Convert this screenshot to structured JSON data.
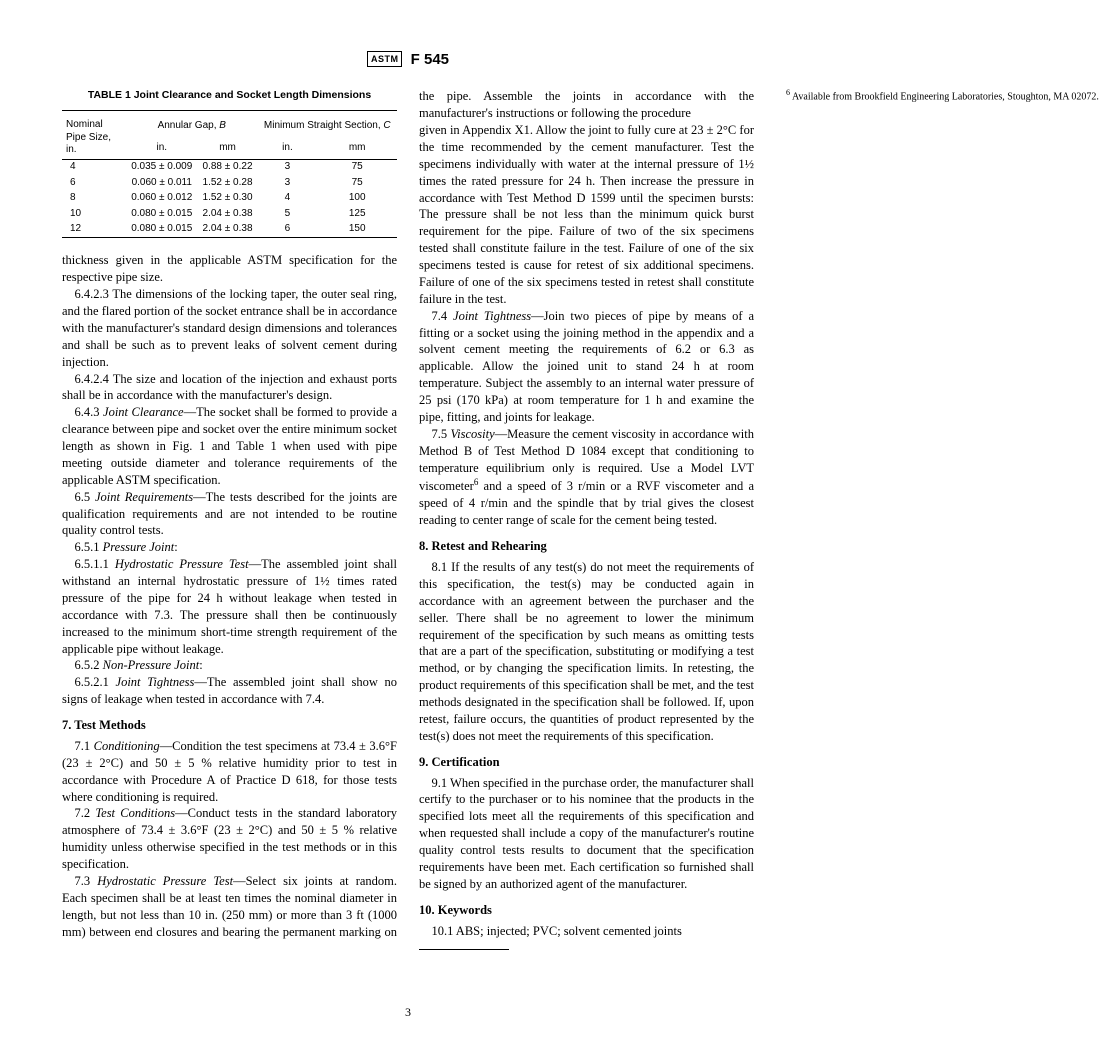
{
  "header": {
    "logo_text": "ASTM",
    "designation": "F 545"
  },
  "table1": {
    "title": "TABLE 1   Joint Clearance and Socket Length Dimensions",
    "col_group1": "Nominal Pipe Size, in.",
    "col_group2": "Annular Gap, <em class='it'>B</em>",
    "col_group3": "Minimum Straight Section, <em class='it'>C</em>",
    "sub_in": "in.",
    "sub_mm": "mm",
    "rows": [
      {
        "size": "4",
        "gap_in": "0.035 ± 0.009",
        "gap_mm": "0.88 ± 0.22",
        "c_in": "3",
        "c_mm": "75"
      },
      {
        "size": "6",
        "gap_in": "0.060 ± 0.011",
        "gap_mm": "1.52 ± 0.28",
        "c_in": "3",
        "c_mm": "75"
      },
      {
        "size": "8",
        "gap_in": "0.060 ± 0.012",
        "gap_mm": "1.52 ± 0.30",
        "c_in": "4",
        "c_mm": "100"
      },
      {
        "size": "10",
        "gap_in": "0.080 ± 0.015",
        "gap_mm": "2.04 ± 0.38",
        "c_in": "5",
        "c_mm": "125"
      },
      {
        "size": "12",
        "gap_in": "0.080 ± 0.015",
        "gap_mm": "2.04 ± 0.38",
        "c_in": "6",
        "c_mm": "150"
      }
    ]
  },
  "paras": {
    "p0": "thickness given in the applicable ASTM specification for the respective pipe size.",
    "p1": "6.4.2.3 The dimensions of the locking taper, the outer seal ring, and the flared portion of the socket entrance shall be in accordance with the manufacturer's standard design dimensions and tolerances and shall be such as to prevent leaks of solvent cement during injection.",
    "p2": "6.4.2.4 The size and location of the injection and exhaust ports shall be in accordance with the manufacturer's design.",
    "p3": "6.4.3 <em class='it'>Joint Clearance</em>—The socket shall be formed to provide a clearance between pipe and socket over the entire minimum socket length as shown in Fig. 1 and Table 1 when used with pipe meeting outside diameter and tolerance requirements of the applicable ASTM specification.",
    "p4": "6.5 <em class='it'>Joint Requirements</em>—The tests described for the joints are qualification requirements and are not intended to be routine quality control tests.",
    "p5": "6.5.1 <em class='it'>Pressure Joint</em>:",
    "p6": "6.5.1.1 <em class='it'>Hydrostatic Pressure Test</em>—The assembled joint shall withstand an internal hydrostatic pressure of 1½ times rated pressure of the pipe for 24 h without leakage when tested in accordance with 7.3. The pressure shall then be continuously increased to the minimum short-time strength requirement of the applicable pipe without leakage.",
    "p7": "6.5.2 <em class='it'>Non-Pressure Joint</em>:",
    "p8": "6.5.2.1 <em class='it'>Joint Tightness</em>—The assembled joint shall show no signs of leakage when tested in accordance with 7.4.",
    "h7": "7. Test Methods",
    "p9": "7.1 <em class='it'>Conditioning</em>—Condition the test specimens at 73.4 ± 3.6°F (23 ± 2°C) and 50 ± 5 % relative humidity prior to test in accordance with Procedure A of Practice D 618, for those tests where conditioning is required.",
    "p10": "7.2 <em class='it'>Test Conditions</em>—Conduct tests in the standard laboratory atmosphere of 73.4 ± 3.6°F (23 ± 2°C) and 50 ± 5 % relative humidity unless otherwise specified in the test methods or in this specification.",
    "p11": "7.3 <em class='it'>Hydrostatic Pressure Test</em>—Select six joints at random. Each specimen shall be at least ten times the nominal diameter in length, but not less than 10 in. (250 mm) or more than 3 ft (1000 mm) between end closures and bearing the permanent marking on the pipe. Assemble the joints in accordance with the manufacturer's instructions or following the procedure",
    "p12": "given in Appendix X1. Allow the joint to fully cure at 23 ± 2°C for the time recommended by the cement manufacturer. Test the specimens individually with water at the internal pressure of 1½ times the rated pressure for 24 h. Then increase the pressure in accordance with Test Method D 1599 until the specimen bursts: The pressure shall be not less than the minimum quick burst requirement for the pipe. Failure of two of the six specimens tested shall constitute failure in the test. Failure of one of the six specimens tested is cause for retest of six additional specimens. Failure of one of the six specimens tested in retest shall constitute failure in the test.",
    "p13": "7.4 <em class='it'>Joint Tightness</em>—Join two pieces of pipe by means of a fitting or a socket using the joining method in the appendix and a solvent cement meeting the requirements of 6.2 or 6.3 as applicable. Allow the joined unit to stand 24 h at room temperature. Subject the assembly to an internal water pressure of 25 psi (170 kPa) at room temperature for 1 h and examine the pipe, fitting, and joints for leakage.",
    "p14": "7.5 <em class='it'>Viscosity</em>—Measure the cement viscosity in accordance with Method B of Test Method D 1084 except that conditioning to temperature equilibrium only is required. Use a Model LVT viscometer<sup>6</sup> and a speed of 3 r/min or a RVF viscometer and a speed of 4 r/min and the spindle that by trial gives the closest reading to center range of scale for the cement being tested.",
    "h8": "8. Retest and Rehearing",
    "p15": "8.1 If the results of any test(s) do not meet the requirements of this specification, the test(s) may be conducted again in accordance with an agreement between the purchaser and the seller. There shall be no agreement to lower the minimum requirement of the specification by such means as omitting tests that are a part of the specification, substituting or modifying a test method, or by changing the specification limits. In retesting, the product requirements of this specification shall be met, and the test methods designated in the specification shall be followed. If, upon retest, failure occurs, the quantities of product represented by the test(s) does not meet the requirements of this specification.",
    "h9": "9. Certification",
    "p16": "9.1 When specified in the purchase order, the manufacturer shall certify to the purchaser or to his nominee that the products in the specified lots meet all the requirements of this specification and when requested shall include a copy of the manufacturer's routine quality control tests results to document that the specification requirements have been met. Each certification so furnished shall be signed by an authorized agent of the manufacturer.",
    "h10": "10. Keywords",
    "p17": "10.1   ABS; injected; PVC; solvent cemented joints",
    "fn6": "Available from Brookfield Engineering Laboratories, Stoughton, MA 02072."
  },
  "page_number": "3"
}
